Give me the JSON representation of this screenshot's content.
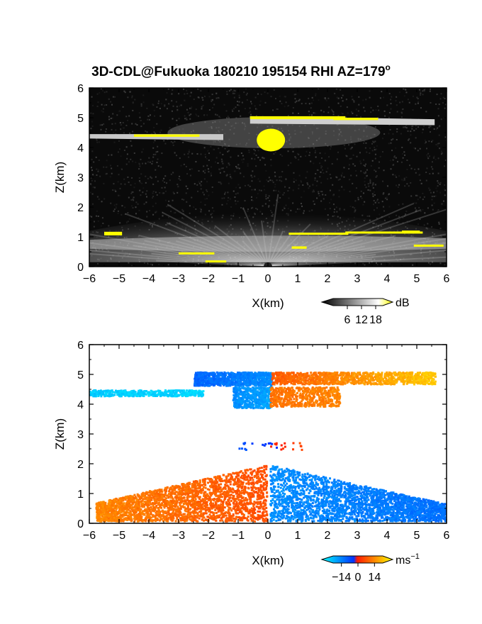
{
  "chart_data": [
    {
      "type": "heatmap",
      "title": "3D-CDL@Fukuoka 180210 195154 RHI AZ=179",
      "title_superscript": "o",
      "xlabel": "X(km)",
      "ylabel": "Z(km)",
      "xlim": [
        -6,
        6
      ],
      "ylim": [
        0,
        6
      ],
      "xticks": [
        "-6",
        "-5",
        "-4",
        "-3",
        "-2",
        "-1",
        "0",
        "1",
        "2",
        "3",
        "4",
        "5",
        "6"
      ],
      "yticks": [
        "0",
        "1",
        "2",
        "3",
        "4",
        "5",
        "6"
      ],
      "colorbar": {
        "unit": "dB",
        "ticks": [
          "6",
          "12",
          "18"
        ],
        "range": [
          0,
          21
        ],
        "colors": [
          "#000000",
          "#ffffff",
          "#ffff00"
        ]
      },
      "background": "#0a0a0a",
      "features": [
        {
          "name": "upper cloud layer",
          "x": [
            -0.6,
            5.6
          ],
          "z": [
            4.75,
            5.05
          ]
        },
        {
          "name": "mid cloud layer",
          "x": [
            -6,
            -1.5
          ],
          "z": [
            4.25,
            4.45
          ]
        },
        {
          "name": "bright core",
          "x": [
            -0.3,
            0.45
          ],
          "z": [
            3.9,
            4.6
          ]
        },
        {
          "name": "boundary layer",
          "x": [
            -6,
            6
          ],
          "z": [
            0.0,
            1.2
          ]
        }
      ]
    },
    {
      "type": "heatmap",
      "xlabel": "X(km)",
      "ylabel": "Z(km)",
      "xlim": [
        -6,
        6
      ],
      "ylim": [
        0,
        6
      ],
      "xticks": [
        "-6",
        "-5",
        "-4",
        "-3",
        "-2",
        "-1",
        "0",
        "1",
        "2",
        "3",
        "4",
        "5",
        "6"
      ],
      "yticks": [
        "0",
        "1",
        "2",
        "3",
        "4",
        "5",
        "6"
      ],
      "colorbar": {
        "unit": "ms",
        "unit_superscript": "−1",
        "ticks": [
          "−14",
          "0",
          "14"
        ],
        "range": [
          -21,
          21
        ],
        "colors": [
          "#00ffff",
          "#0033ff",
          "#ff1a00",
          "#ffff00"
        ]
      },
      "background": "#ffffff",
      "features": [
        {
          "name": "upper layer approaching",
          "x": [
            -2.5,
            0.1
          ],
          "z": [
            4.6,
            5.15
          ],
          "velocity": -8
        },
        {
          "name": "upper layer receding",
          "x": [
            0.1,
            5.6
          ],
          "z": [
            4.6,
            5.15
          ],
          "velocity": 10
        },
        {
          "name": "mid layer",
          "x": [
            -6,
            -2.2
          ],
          "z": [
            4.3,
            4.5
          ],
          "velocity": -16
        },
        {
          "name": "boundary layer west",
          "x": [
            -5.8,
            0
          ],
          "z": [
            0.1,
            2.0
          ],
          "velocity": 7
        },
        {
          "name": "boundary layer east",
          "x": [
            0,
            6
          ],
          "z": [
            0.1,
            2.0
          ],
          "velocity": -8
        }
      ]
    }
  ]
}
